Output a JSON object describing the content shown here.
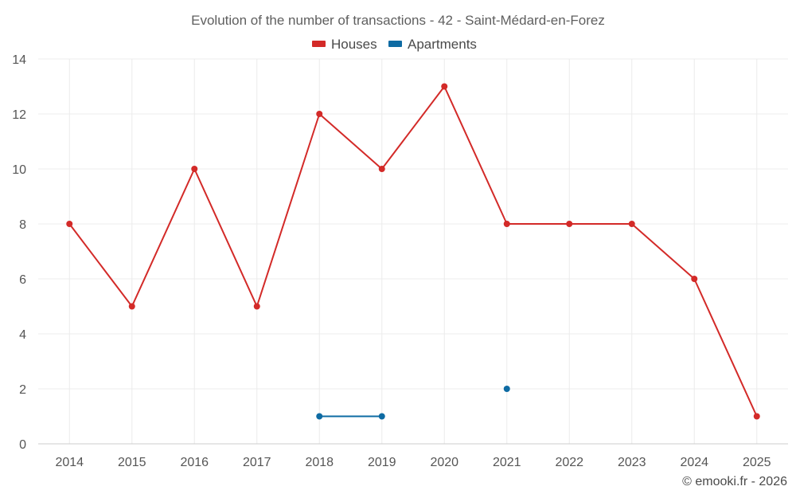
{
  "chart_data": {
    "type": "line",
    "title": "Evolution of the number of transactions - 42 - Saint-Médard-en-Forez",
    "xlabel": "",
    "ylabel": "",
    "categories": [
      "2014",
      "2015",
      "2016",
      "2017",
      "2018",
      "2019",
      "2020",
      "2021",
      "2022",
      "2023",
      "2024",
      "2025"
    ],
    "ylim": [
      0,
      14
    ],
    "yticks": [
      0,
      2,
      4,
      6,
      8,
      10,
      12,
      14
    ],
    "grid": true,
    "legend_position": "top-center",
    "series": [
      {
        "name": "Houses",
        "color": "#d32a28",
        "values": [
          8,
          5,
          10,
          5,
          12,
          10,
          13,
          8,
          8,
          8,
          6,
          1
        ]
      },
      {
        "name": "Apartments",
        "color": "#0e6ba3",
        "values": [
          null,
          null,
          null,
          null,
          1,
          1,
          null,
          2,
          null,
          null,
          null,
          null
        ]
      }
    ]
  },
  "credit": "© emooki.fr - 2026"
}
